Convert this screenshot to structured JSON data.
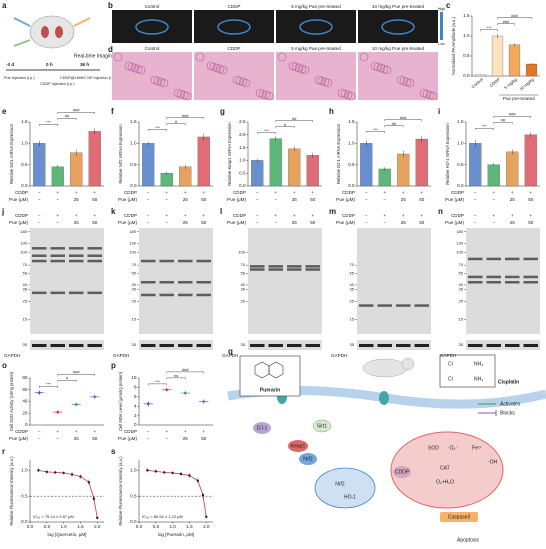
{
  "panel_labels": [
    "a",
    "b",
    "c",
    "d",
    "e",
    "f",
    "g",
    "h",
    "i",
    "j",
    "k",
    "l",
    "m",
    "n",
    "o",
    "p",
    "q",
    "r",
    "s"
  ],
  "timeline": {
    "times": [
      "-3 d",
      "0 h",
      "36 h"
    ],
    "events": [
      "Pue Injection (i.p.)",
      "CDDP Injection (i.p.)",
      "CDDP@LMWC NP Injection (i.v.)"
    ],
    "imaging": "Real-time Imaging"
  },
  "imaging_groups": [
    "Control",
    "CDDP",
    "5 mg/kg Pue pre-treated",
    "10 mg/kg Pue pre-treated"
  ],
  "colorbar": [
    "High",
    "Low"
  ],
  "treatment": {
    "rows": [
      "CDDP",
      "Pue (μM)"
    ],
    "cddp": [
      "−",
      "+",
      "+",
      "+"
    ],
    "pue": [
      "−",
      "−",
      "25",
      "50"
    ]
  },
  "blots": [
    {
      "markers": [
        180,
        130,
        100,
        70,
        55,
        40,
        35,
        25,
        15
      ],
      "control": "GAPDH",
      "control_marker": 35
    },
    {
      "markers": [
        180,
        130,
        100,
        70,
        55,
        40,
        35,
        25,
        15
      ],
      "control": "GAPDH",
      "control_marker": 35
    },
    {
      "markers": [
        100,
        70,
        55,
        40,
        35,
        25
      ],
      "control": "GAPDH",
      "control_marker": 35
    },
    {
      "markers": [
        70,
        55,
        40,
        35,
        25,
        15
      ],
      "control": "GAPDH",
      "control_marker": 35
    },
    {
      "markers": [
        180,
        130,
        100,
        70,
        55,
        40,
        35,
        25,
        15
      ],
      "control": "GAPDH",
      "control_marker": 35
    }
  ],
  "chart_data": [
    {
      "type": "bar",
      "y_label": "Normalized PA Amplitude (a.u.)",
      "categories": [
        "Control",
        "CDDP",
        "5 mg/kg",
        "10 mg/kg"
      ],
      "group_label": "Pue pre-treated",
      "values": [
        0.03,
        1.0,
        0.78,
        0.3
      ],
      "errors": [
        0.01,
        0.06,
        0.04,
        0.02
      ],
      "colors": [
        "#f3efe6",
        "#fbe3bd",
        "#f4a95d",
        "#e0782a"
      ],
      "ylim": [
        0,
        1.5
      ],
      "yticks": [
        {
          "value": 0,
          "label": "0.0"
        },
        0.5,
        {
          "value": 1,
          "label": "1.0"
        },
        1.5
      ],
      "annotations": [
        "***",
        "###",
        "###"
      ]
    },
    {
      "type": "bar",
      "y_label": "Relative Sirt1 mRNA Expression",
      "values": [
        1.0,
        0.45,
        0.78,
        1.28
      ],
      "errors": [
        0.06,
        0.04,
        0.07,
        0.07
      ],
      "colors": [
        "#6a8fcf",
        "#5cb87a",
        "#e5a35f",
        "#e06c75"
      ],
      "ylim": [
        0,
        1.5
      ],
      "yticks": [
        {
          "value": 0,
          "label": "0.0"
        },
        0.5,
        {
          "value": 1,
          "label": "1.0"
        },
        1.5
      ],
      "annotations": [
        "***",
        "##",
        "###"
      ]
    },
    {
      "type": "bar",
      "y_label": "Relative Nrf2 mRNA Expression",
      "values": [
        1.0,
        0.3,
        0.45,
        1.15
      ],
      "errors": [
        0.04,
        0.04,
        0.05,
        0.08
      ],
      "colors": [
        "#6a8fcf",
        "#5cb87a",
        "#e5a35f",
        "#e06c75"
      ],
      "ylim": [
        0,
        1.5
      ],
      "yticks": [
        {
          "value": 0,
          "label": "0.0"
        },
        0.5,
        {
          "value": 1,
          "label": "1.0"
        },
        1.5
      ],
      "annotations": [
        "***",
        "#",
        "###"
      ]
    },
    {
      "type": "bar",
      "y_label": "Relative Keap1 mRNA Expression",
      "values": [
        1.0,
        1.85,
        1.45,
        1.2
      ],
      "errors": [
        0.07,
        0.08,
        0.1,
        0.1
      ],
      "colors": [
        "#6a8fcf",
        "#5cb87a",
        "#e5a35f",
        "#e06c75"
      ],
      "ylim": [
        0,
        2.5
      ],
      "yticks": [
        {
          "value": 0,
          "label": "0.0"
        },
        0.5,
        {
          "value": 1,
          "label": "1.0"
        },
        1.5,
        {
          "value": 2,
          "label": "2.0"
        },
        2.5
      ],
      "annotations": [
        "***",
        "#",
        "##"
      ]
    },
    {
      "type": "bar",
      "y_label": "Relative DJ-1 mRNA Expression",
      "values": [
        1.0,
        0.4,
        0.75,
        1.1
      ],
      "errors": [
        0.07,
        0.04,
        0.08,
        0.08
      ],
      "colors": [
        "#6a8fcf",
        "#5cb87a",
        "#e5a35f",
        "#e06c75"
      ],
      "ylim": [
        0,
        1.5
      ],
      "yticks": [
        {
          "value": 0,
          "label": "0.0"
        },
        0.5,
        {
          "value": 1,
          "label": "1.0"
        },
        1.5
      ],
      "annotations": [
        "***",
        "##",
        "###"
      ]
    },
    {
      "type": "bar",
      "y_label": "Relative HO-1 mRNA Expression",
      "values": [
        1.0,
        0.5,
        0.8,
        1.2
      ],
      "errors": [
        0.08,
        0.04,
        0.06,
        0.06
      ],
      "colors": [
        "#6a8fcf",
        "#5cb87a",
        "#e5a35f",
        "#e06c75"
      ],
      "ylim": [
        0,
        1.5
      ],
      "yticks": [
        {
          "value": 0,
          "label": "0.0"
        },
        0.5,
        {
          "value": 1,
          "label": "1.0"
        },
        1.5
      ],
      "annotations": [
        "***",
        "##",
        "###"
      ]
    },
    {
      "type": "dot",
      "y_label": "Cell SOD Activity (U/mg protein)",
      "values": [
        55,
        22,
        35,
        48
      ],
      "errors": [
        4,
        3,
        3,
        4
      ],
      "colors": [
        "#3d5fb5",
        "#d9343a",
        "#3a9b55",
        "#8e5aa8"
      ],
      "ylim": [
        0,
        80
      ],
      "yticks": [
        0,
        20,
        40,
        60,
        80
      ],
      "annotations": [
        "***",
        "#",
        "###"
      ]
    },
    {
      "type": "dot",
      "y_label": "Cell MDA Level (μmol/g protein)",
      "values": [
        4.5,
        7.5,
        6.8,
        5.0
      ],
      "errors": [
        0.6,
        0.4,
        0.5,
        0.5
      ],
      "colors": [
        "#3d5fb5",
        "#d9343a",
        "#3a9b55",
        "#8e5aa8"
      ],
      "ylim": [
        0,
        10
      ],
      "yticks": [
        0,
        2,
        4,
        6,
        8,
        10
      ],
      "annotations": [
        "***",
        "ns",
        "###"
      ]
    },
    {
      "type": "line",
      "y_label": "Relative Fluorescence Intensity (a.u.)",
      "x_label": "log [Quercetin, μM]",
      "annotation": "IC₅₀ = 75.14 ± 0.87 μM",
      "x": [
        0.25,
        0.5,
        0.75,
        1.0,
        1.25,
        1.5,
        1.75,
        1.9,
        2.0
      ],
      "values": [
        1.0,
        0.97,
        0.96,
        0.95,
        0.92,
        0.88,
        0.77,
        0.45,
        0.08
      ],
      "errors": [
        0.04,
        0.03,
        0.03,
        0.03,
        0.04,
        0.04,
        0.05,
        0.05,
        0.03
      ],
      "color": "#d9343a",
      "reference_line": 0.5,
      "xlim": [
        0,
        2.2
      ],
      "xticks": [
        {
          "value": 0,
          "label": "0.0"
        },
        0.5,
        {
          "value": 1,
          "label": "1.0"
        },
        1.5,
        {
          "value": 2,
          "label": "2.0"
        }
      ],
      "ylim": [
        0,
        1.2
      ],
      "yticks": [
        {
          "value": 0,
          "label": "0.0"
        },
        0.5,
        {
          "value": 1,
          "label": "1.0"
        }
      ]
    },
    {
      "type": "line",
      "y_label": "Relative Fluorescence Intensity (a.u.)",
      "x_label": "log [Puerarin, μM]",
      "annotation": "IC₅₀ = 80.52 ± 1.22 μM",
      "x": [
        0.25,
        0.5,
        0.75,
        1.0,
        1.25,
        1.5,
        1.75,
        1.9,
        2.0
      ],
      "values": [
        1.0,
        0.98,
        0.96,
        0.95,
        0.93,
        0.9,
        0.8,
        0.52,
        0.1
      ],
      "errors": [
        0.04,
        0.03,
        0.03,
        0.03,
        0.04,
        0.04,
        0.05,
        0.05,
        0.03
      ],
      "color": "#d9343a",
      "reference_line": 0.5,
      "xlim": [
        0,
        2.2
      ],
      "xticks": [
        {
          "value": 0,
          "label": "0.0"
        },
        0.5,
        {
          "value": 1,
          "label": "1.0"
        },
        1.5,
        {
          "value": 2,
          "label": "2.0"
        }
      ],
      "ylim": [
        0,
        1.2
      ],
      "yticks": [
        {
          "value": 0,
          "label": "0.0"
        },
        0.5,
        {
          "value": 1,
          "label": "1.0"
        }
      ]
    }
  ],
  "pathway": {
    "drug1": "Puerarin",
    "drug2": "Cisplatin",
    "cisplatin_atoms": [
      "Cl",
      "NH₃",
      "Cl",
      "NH₃"
    ],
    "legend": [
      "Activates",
      "Blocks"
    ],
    "nodes": {
      "dj1": "DJ-1",
      "sirt1": "Sirt1",
      "keap1": "Keap1",
      "nrf2": "Nrf2",
      "nrf2_nuc": "Nrf2",
      "ho1": "HO-1",
      "cddp": "CDDP",
      "sod": "SOD",
      "cat": "CAT",
      "water": "O₂+H₂O",
      "superoxide": "·O₂⁻",
      "fe": "Fe²⁺",
      "oh": "·OH",
      "caspase": "Caspase3",
      "apoptosis": "Apoptosis"
    }
  }
}
